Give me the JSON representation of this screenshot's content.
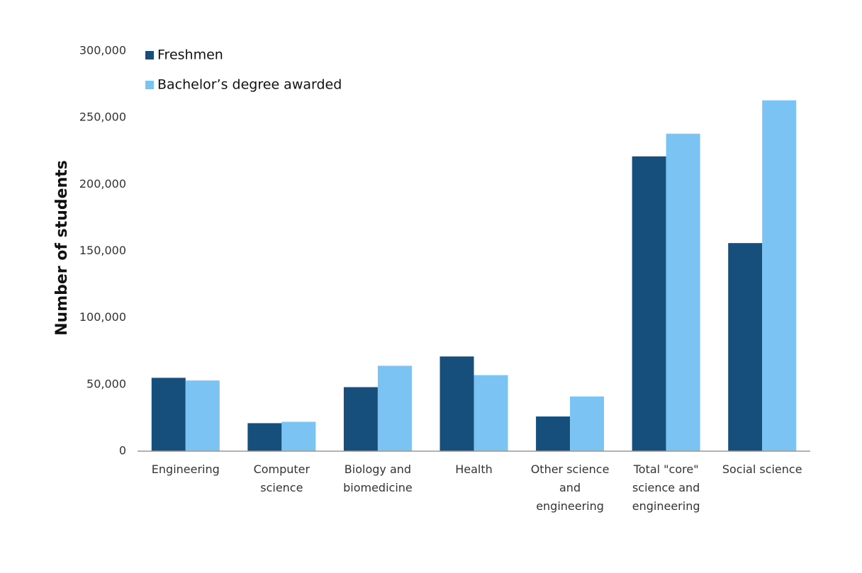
{
  "chart_data": {
    "type": "bar",
    "y_label": "Number of students",
    "categories": [
      "Engineering",
      "Computer science",
      "Biology and biomedicine",
      "Health",
      "Other science and engineering",
      "Total \"core\" science and engineering",
      "Social science"
    ],
    "series": [
      {
        "name": "Freshmen",
        "color": "#174f7c",
        "values": [
          55000,
          21000,
          48000,
          71000,
          26000,
          221000,
          156000
        ]
      },
      {
        "name": "Bachelor’s degree awarded",
        "color": "#7ac3f3",
        "values": [
          53000,
          22000,
          64000,
          57000,
          41000,
          238000,
          263000
        ]
      }
    ],
    "ylim": [
      0,
      300000
    ],
    "yticks": [
      0,
      {
        "value": 50000,
        "label": "50,000"
      },
      {
        "value": 100000,
        "label": "100,000"
      },
      {
        "value": 150000,
        "label": "150,000"
      },
      {
        "value": 200000,
        "label": "200,000"
      },
      {
        "value": 250000,
        "label": "250,000"
      },
      {
        "value": 300000,
        "label": "300,000"
      }
    ],
    "grid": false,
    "legend": "top-left"
  }
}
